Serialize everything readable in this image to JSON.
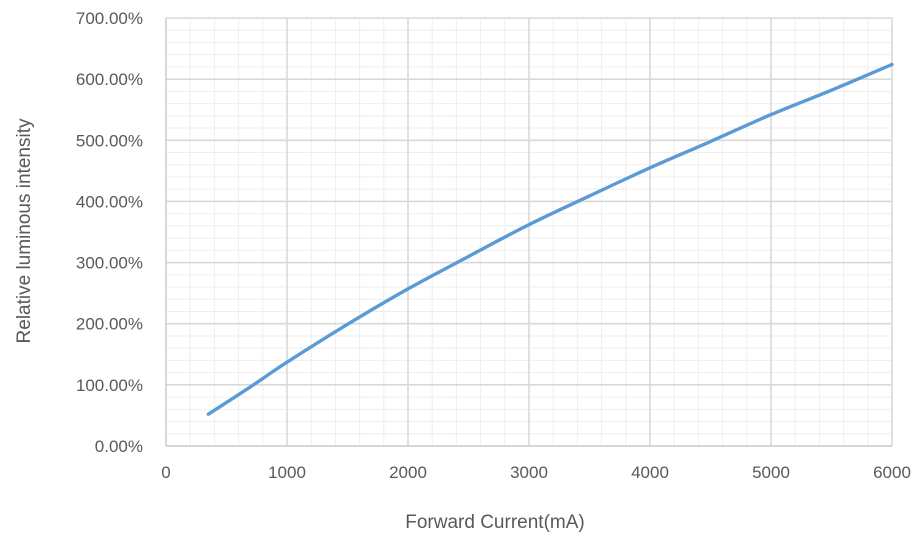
{
  "chart_data": {
    "type": "line",
    "title": "",
    "xlabel": "Forward Current(mA)",
    "ylabel": "Relative luminous intensity",
    "xlim": [
      0,
      6000
    ],
    "ylim": [
      0,
      7
    ],
    "x_ticks": [
      0,
      1000,
      2000,
      3000,
      4000,
      5000,
      6000
    ],
    "x_tick_labels": [
      "0",
      "1000",
      "2000",
      "3000",
      "4000",
      "5000",
      "6000"
    ],
    "y_ticks": [
      0,
      1,
      2,
      3,
      4,
      5,
      6,
      7
    ],
    "y_tick_labels": [
      "0.00%",
      "100.00%",
      "200.00%",
      "300.00%",
      "400.00%",
      "500.00%",
      "600.00%",
      "700.00%"
    ],
    "grid": {
      "major": true,
      "minor": true,
      "minor_x_step": 200,
      "minor_y_step": 0.2
    },
    "legend": "none",
    "series": [
      {
        "color": "#5b9bd5",
        "x": [
          350,
          700,
          1000,
          1500,
          2000,
          2500,
          3000,
          3500,
          4000,
          4500,
          5000,
          5500,
          6000
        ],
        "y": [
          0.52,
          0.97,
          1.37,
          1.99,
          2.57,
          3.1,
          3.62,
          4.09,
          4.55,
          4.98,
          5.42,
          5.82,
          6.24
        ]
      }
    ]
  }
}
